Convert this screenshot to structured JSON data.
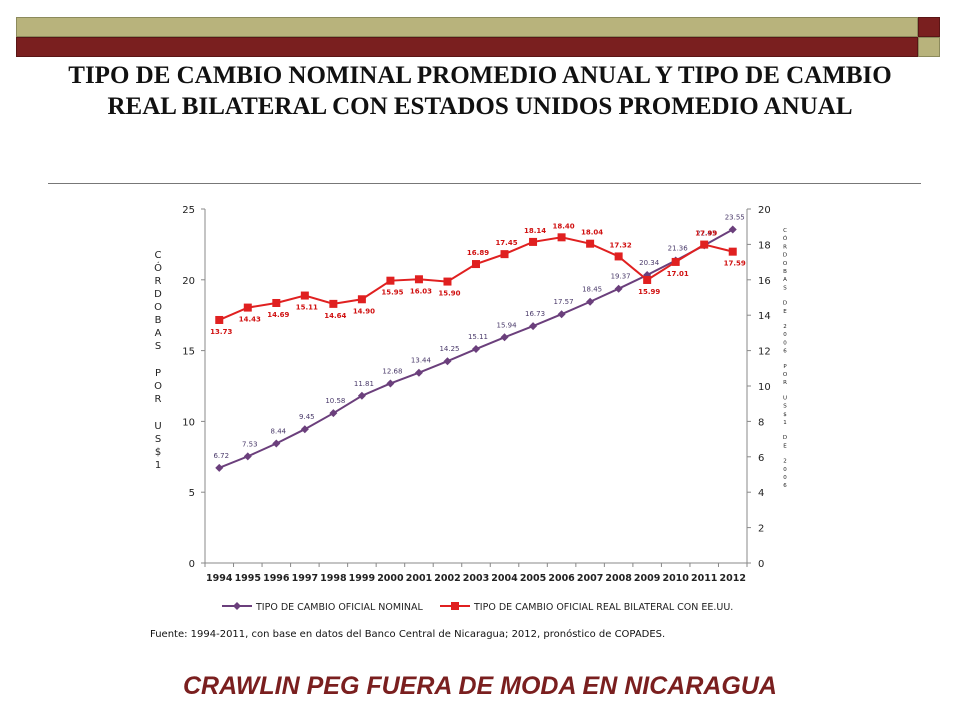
{
  "slide": {
    "title": "TIPO DE CAMBIO NOMINAL PROMEDIO ANUAL Y TIPO DE CAMBIO REAL BILATERAL CON ESTADOS UNIDOS PROMEDIO ANUAL",
    "footer": "CRAWLIN PEG FUERA DE MODA EN NICARAGUA"
  },
  "colors": {
    "band_olive": "#b8b37c",
    "band_red": "#7a1f1f",
    "nominal": "#6b3f7c",
    "real": "#e02020"
  },
  "chart_data": {
    "type": "line",
    "categories": [
      "1994",
      "1995",
      "1996",
      "1997",
      "1998",
      "1999",
      "2000",
      "2001",
      "2002",
      "2003",
      "2004",
      "2005",
      "2006",
      "2007",
      "2008",
      "2009",
      "2010",
      "2011",
      "2012"
    ],
    "series": [
      {
        "name": "TIPO DE CAMBIO OFICIAL NOMINAL",
        "axis": "left",
        "marker": "diamond",
        "values": [
          6.72,
          7.53,
          8.44,
          9.45,
          10.58,
          11.81,
          12.68,
          13.44,
          14.25,
          15.11,
          15.94,
          16.73,
          17.57,
          18.45,
          19.37,
          20.34,
          21.36,
          22.43,
          23.55
        ],
        "labels": [
          "6.72",
          "7.53",
          "8.44",
          "9.45",
          "10.58",
          "11.81",
          "12.68",
          "13.44",
          "14.25",
          "15.11",
          "15.94",
          "16.73",
          "17.57",
          "18.45",
          "19.37",
          "20.34",
          "21.36",
          "22.43",
          "23.55"
        ]
      },
      {
        "name": "TIPO DE CAMBIO OFICIAL REAL BILATERAL CON EE.UU.",
        "axis": "right",
        "marker": "square",
        "values": [
          13.73,
          14.43,
          14.69,
          15.11,
          14.64,
          14.9,
          15.95,
          16.03,
          15.9,
          16.89,
          17.45,
          18.14,
          18.4,
          18.04,
          17.32,
          15.99,
          17.01,
          17.99,
          17.59
        ],
        "labels": [
          "13.73",
          "14.43",
          "14.69",
          "15.11",
          "14.64",
          "14.90",
          "15.95",
          "16.03",
          "15.90",
          "16.89",
          "17.45",
          "18.14",
          "18.40",
          "18.04",
          "17.32",
          "15.99",
          "17.01",
          "17.99",
          "17.59"
        ]
      }
    ],
    "left_axis": {
      "label": "CÓRDOBAS POR US$1",
      "ylim": [
        0,
        25
      ],
      "ticks": [
        "0",
        "5",
        "10",
        "15",
        "20",
        "25"
      ]
    },
    "right_axis": {
      "label": "CÓRDOBAS DE 2006 POR US$1 DE 2006",
      "ylim": [
        0,
        20
      ],
      "ticks": [
        "0",
        "2",
        "4",
        "6",
        "8",
        "10",
        "12",
        "14",
        "16",
        "18",
        "20"
      ]
    },
    "grid": false,
    "legend_position": "bottom",
    "source": "Fuente: 1994-2011, con base en datos del Banco Central de Nicaragua; 2012, pronóstico de COPADES."
  }
}
